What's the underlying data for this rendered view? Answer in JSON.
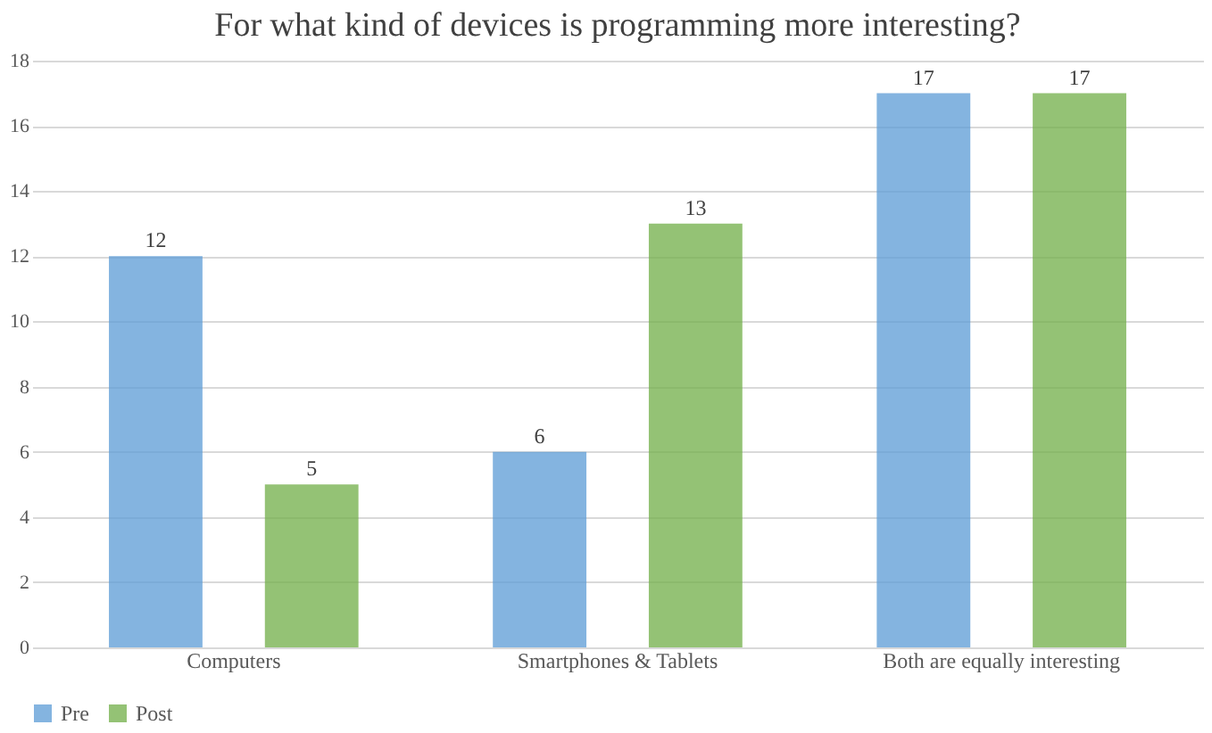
{
  "chart_data": {
    "type": "bar",
    "title": "For what kind of devices is programming more interesting?",
    "categories": [
      "Computers",
      "Smartphones & Tablets",
      "Both are equally interesting"
    ],
    "series": [
      {
        "name": "Pre",
        "color": "#5b9bd5",
        "values": [
          12,
          6,
          17
        ]
      },
      {
        "name": "Post",
        "color": "#70ad47",
        "values": [
          5,
          13,
          17
        ]
      }
    ],
    "ylim": [
      0,
      18
    ],
    "yticks": [
      0,
      2,
      4,
      6,
      8,
      10,
      12,
      14,
      16,
      18
    ],
    "grid": "y",
    "legend": "bottom",
    "data_labels": true
  }
}
